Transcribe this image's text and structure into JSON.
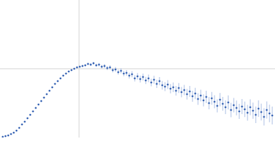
{
  "chart_data": {
    "type": "scatter",
    "color": "#3a66b5",
    "error_color": "#a9bde3",
    "xlim": [
      0,
      4
    ],
    "ylim": [
      0,
      2
    ],
    "vline": 1.15,
    "hline": 1.0,
    "x": [
      0.04,
      0.08,
      0.12,
      0.16,
      0.2,
      0.24,
      0.28,
      0.32,
      0.36,
      0.4,
      0.44,
      0.48,
      0.52,
      0.56,
      0.6,
      0.64,
      0.68,
      0.72,
      0.76,
      0.8,
      0.84,
      0.88,
      0.92,
      0.96,
      1.0,
      1.04,
      1.08,
      1.12,
      1.16,
      1.2,
      1.24,
      1.28,
      1.32,
      1.36,
      1.4,
      1.44,
      1.48,
      1.52,
      1.56,
      1.6,
      1.64,
      1.68,
      1.72,
      1.76,
      1.8,
      1.84,
      1.88,
      1.92,
      1.96,
      2.0,
      2.04,
      2.08,
      2.12,
      2.16,
      2.2,
      2.24,
      2.28,
      2.32,
      2.36,
      2.4,
      2.44,
      2.48,
      2.52,
      2.56,
      2.6,
      2.64,
      2.68,
      2.72,
      2.76,
      2.8,
      2.84,
      2.88,
      2.92,
      2.96,
      3.0,
      3.04,
      3.08,
      3.12,
      3.16,
      3.2,
      3.24,
      3.28,
      3.32,
      3.36,
      3.4,
      3.44,
      3.48,
      3.52,
      3.56,
      3.6,
      3.64,
      3.68,
      3.72,
      3.76,
      3.8,
      3.84,
      3.88,
      3.92,
      3.96
    ],
    "y": [
      0.01,
      0.02,
      0.03,
      0.05,
      0.07,
      0.1,
      0.14,
      0.19,
      0.23,
      0.28,
      0.33,
      0.38,
      0.43,
      0.48,
      0.53,
      0.58,
      0.63,
      0.68,
      0.73,
      0.78,
      0.82,
      0.86,
      0.9,
      0.93,
      0.96,
      0.98,
      1.0,
      1.02,
      1.03,
      1.04,
      1.05,
      1.07,
      1.06,
      1.08,
      1.05,
      1.06,
      1.03,
      1.04,
      1.01,
      1.02,
      0.98,
      0.99,
      0.95,
      0.97,
      0.93,
      0.94,
      0.9,
      0.92,
      0.86,
      0.89,
      0.85,
      0.88,
      0.83,
      0.86,
      0.8,
      0.84,
      0.78,
      0.82,
      0.76,
      0.74,
      0.77,
      0.71,
      0.73,
      0.68,
      0.72,
      0.66,
      0.69,
      0.63,
      0.67,
      0.6,
      0.64,
      0.56,
      0.61,
      0.54,
      0.59,
      0.5,
      0.57,
      0.52,
      0.46,
      0.55,
      0.49,
      0.44,
      0.51,
      0.4,
      0.47,
      0.43,
      0.38,
      0.45,
      0.41,
      0.36,
      0.44,
      0.39,
      0.33,
      0.42,
      0.37,
      0.3,
      0.4,
      0.35,
      0.32
    ],
    "err": [
      0.005,
      0.005,
      0.005,
      0.005,
      0.005,
      0.005,
      0.005,
      0.005,
      0.005,
      0.005,
      0.005,
      0.005,
      0.005,
      0.005,
      0.005,
      0.005,
      0.005,
      0.005,
      0.005,
      0.005,
      0.005,
      0.005,
      0.005,
      0.005,
      0.005,
      0.01,
      0.01,
      0.012,
      0.012,
      0.015,
      0.015,
      0.018,
      0.02,
      0.02,
      0.022,
      0.025,
      0.025,
      0.028,
      0.03,
      0.03,
      0.032,
      0.035,
      0.035,
      0.038,
      0.04,
      0.04,
      0.042,
      0.045,
      0.045,
      0.048,
      0.05,
      0.05,
      0.052,
      0.055,
      0.055,
      0.058,
      0.06,
      0.06,
      0.062,
      0.065,
      0.065,
      0.068,
      0.07,
      0.07,
      0.072,
      0.075,
      0.075,
      0.078,
      0.08,
      0.08,
      0.082,
      0.085,
      0.085,
      0.088,
      0.09,
      0.09,
      0.092,
      0.095,
      0.095,
      0.098,
      0.1,
      0.1,
      0.102,
      0.105,
      0.105,
      0.108,
      0.11,
      0.11,
      0.112,
      0.115,
      0.115,
      0.118,
      0.12,
      0.12,
      0.122,
      0.125,
      0.125,
      0.128,
      0.13
    ]
  }
}
